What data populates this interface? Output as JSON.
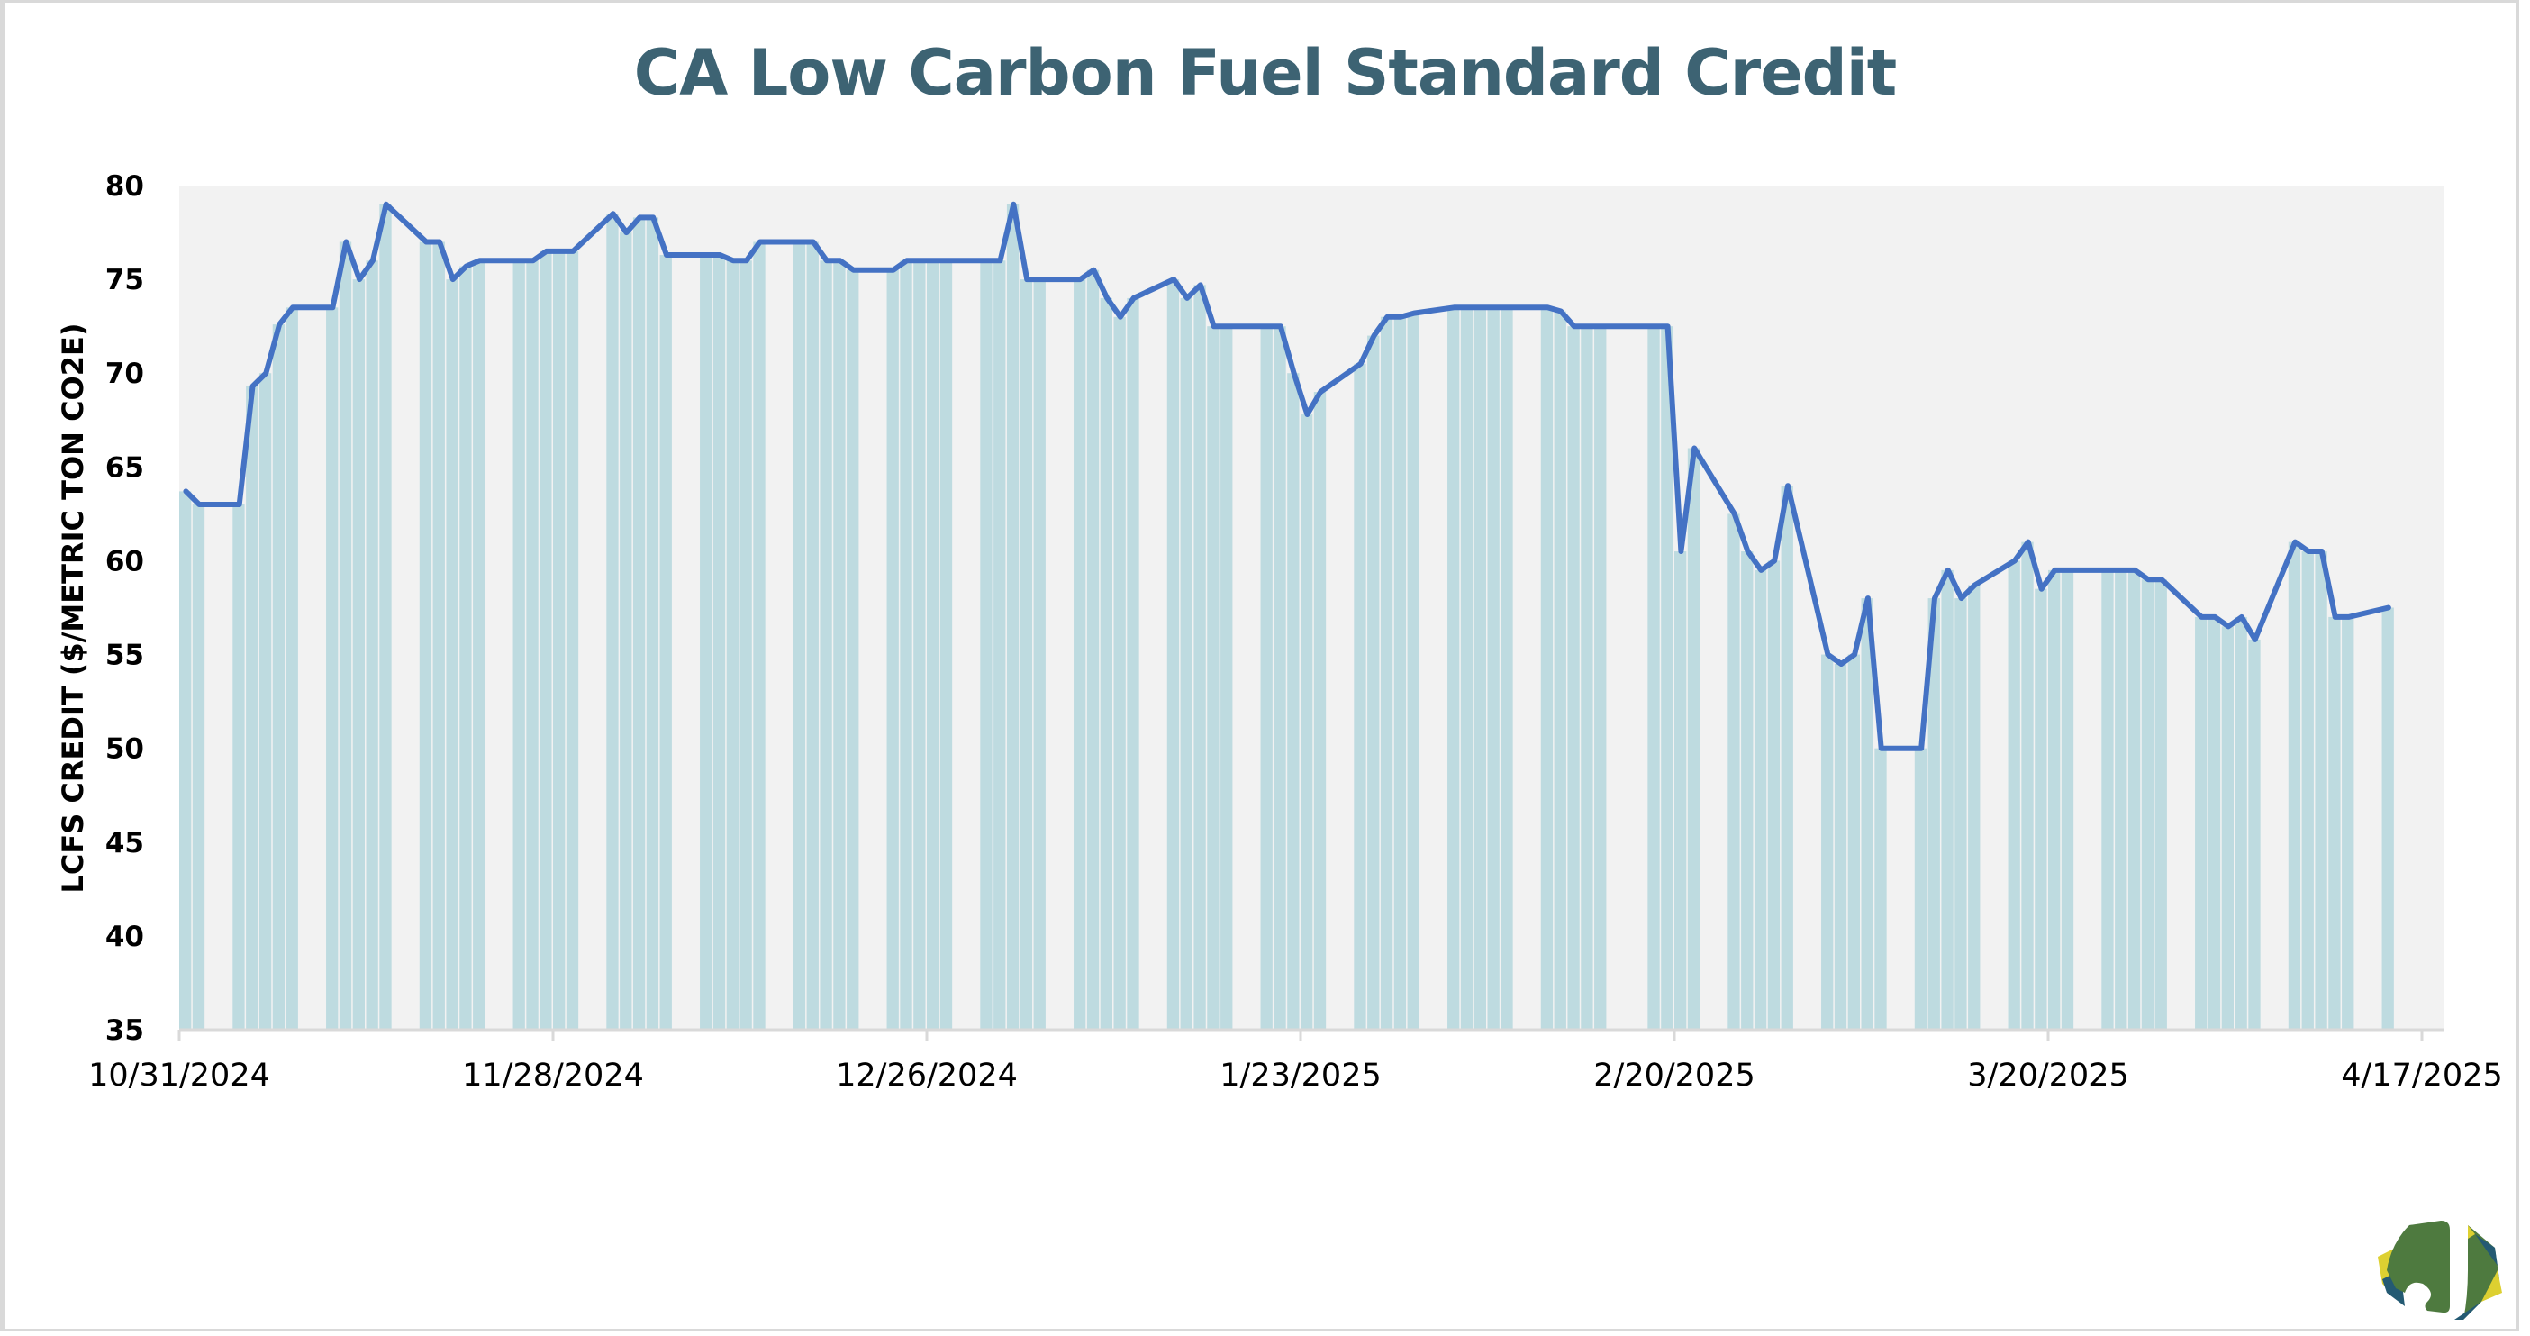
{
  "chart_data": {
    "type": "bar+line",
    "title": "CA Low Carbon Fuel Standard Credit",
    "xlabel": "",
    "ylabel": "LCFS CREDIT ($/METRIC TON CO2E)",
    "ylim": [
      35,
      80
    ],
    "yticks": [
      "35",
      "40",
      "45",
      "50",
      "55",
      "60",
      "65",
      "70",
      "75",
      "80"
    ],
    "xticks": [
      "10/31/2024",
      "11/28/2024",
      "12/26/2024",
      "1/23/2025",
      "2/20/2025",
      "3/20/2025",
      "4/17/2025"
    ],
    "xrange": [
      "2024-10-31",
      "2025-04-17"
    ],
    "grid": false,
    "legend": "none",
    "colors": {
      "bar": "#bedbe0",
      "line": "#4472c4",
      "plot_bg": "#f2f2f2",
      "title": "#3d6373"
    },
    "series": [
      {
        "name": "LCFS Credit",
        "points": [
          [
            "2024-10-31",
            63.7
          ],
          [
            "2024-11-01",
            63.0
          ],
          [
            "2024-11-04",
            63.0
          ],
          [
            "2024-11-05",
            69.3
          ],
          [
            "2024-11-06",
            70.0
          ],
          [
            "2024-11-07",
            72.6
          ],
          [
            "2024-11-08",
            73.5
          ],
          [
            "2024-11-11",
            73.5
          ],
          [
            "2024-11-12",
            77.0
          ],
          [
            "2024-11-13",
            75.0
          ],
          [
            "2024-11-14",
            76.0
          ],
          [
            "2024-11-15",
            79.0
          ],
          [
            "2024-11-18",
            77.0
          ],
          [
            "2024-11-19",
            77.0
          ],
          [
            "2024-11-20",
            75.0
          ],
          [
            "2024-11-21",
            75.7
          ],
          [
            "2024-11-22",
            76.0
          ],
          [
            "2024-11-25",
            76.0
          ],
          [
            "2024-11-26",
            76.0
          ],
          [
            "2024-11-27",
            76.5
          ],
          [
            "2024-11-28",
            76.5
          ],
          [
            "2024-11-29",
            76.5
          ],
          [
            "2024-12-02",
            78.5
          ],
          [
            "2024-12-03",
            77.5
          ],
          [
            "2024-12-04",
            78.3
          ],
          [
            "2024-12-05",
            78.3
          ],
          [
            "2024-12-06",
            76.3
          ],
          [
            "2024-12-09",
            76.3
          ],
          [
            "2024-12-10",
            76.3
          ],
          [
            "2024-12-11",
            76.0
          ],
          [
            "2024-12-12",
            76.0
          ],
          [
            "2024-12-13",
            77.0
          ],
          [
            "2024-12-16",
            77.0
          ],
          [
            "2024-12-17",
            77.0
          ],
          [
            "2024-12-18",
            76.0
          ],
          [
            "2024-12-19",
            76.0
          ],
          [
            "2024-12-20",
            75.5
          ],
          [
            "2024-12-23",
            75.5
          ],
          [
            "2024-12-24",
            76.0
          ],
          [
            "2024-12-25",
            76.0
          ],
          [
            "2024-12-26",
            76.0
          ],
          [
            "2024-12-27",
            76.0
          ],
          [
            "2024-12-30",
            76.0
          ],
          [
            "2024-12-31",
            76.0
          ],
          [
            "2025-01-01",
            79.0
          ],
          [
            "2025-01-02",
            75.0
          ],
          [
            "2025-01-03",
            75.0
          ],
          [
            "2025-01-06",
            75.0
          ],
          [
            "2025-01-07",
            75.5
          ],
          [
            "2025-01-08",
            74.0
          ],
          [
            "2025-01-09",
            73.0
          ],
          [
            "2025-01-10",
            74.0
          ],
          [
            "2025-01-13",
            75.0
          ],
          [
            "2025-01-14",
            74.0
          ],
          [
            "2025-01-15",
            74.7
          ],
          [
            "2025-01-16",
            72.5
          ],
          [
            "2025-01-17",
            72.5
          ],
          [
            "2025-01-20",
            72.5
          ],
          [
            "2025-01-21",
            72.5
          ],
          [
            "2025-01-22",
            70.0
          ],
          [
            "2025-01-23",
            67.8
          ],
          [
            "2025-01-24",
            69.0
          ],
          [
            "2025-01-27",
            70.5
          ],
          [
            "2025-01-28",
            72.0
          ],
          [
            "2025-01-29",
            73.0
          ],
          [
            "2025-01-30",
            73.0
          ],
          [
            "2025-01-31",
            73.2
          ],
          [
            "2025-02-03",
            73.5
          ],
          [
            "2025-02-04",
            73.5
          ],
          [
            "2025-02-05",
            73.5
          ],
          [
            "2025-02-06",
            73.5
          ],
          [
            "2025-02-07",
            73.5
          ],
          [
            "2025-02-10",
            73.5
          ],
          [
            "2025-02-11",
            73.3
          ],
          [
            "2025-02-12",
            72.5
          ],
          [
            "2025-02-13",
            72.5
          ],
          [
            "2025-02-14",
            72.5
          ],
          [
            "2025-02-18",
            72.5
          ],
          [
            "2025-02-19",
            72.5
          ],
          [
            "2025-02-20",
            60.5
          ],
          [
            "2025-02-21",
            66.0
          ],
          [
            "2025-02-24",
            62.5
          ],
          [
            "2025-02-25",
            60.5
          ],
          [
            "2025-02-26",
            59.5
          ],
          [
            "2025-02-27",
            60.0
          ],
          [
            "2025-02-28",
            64.0
          ],
          [
            "2025-03-03",
            55.0
          ],
          [
            "2025-03-04",
            54.5
          ],
          [
            "2025-03-05",
            55.0
          ],
          [
            "2025-03-06",
            58.0
          ],
          [
            "2025-03-07",
            50.0
          ],
          [
            "2025-03-10",
            50.0
          ],
          [
            "2025-03-11",
            58.0
          ],
          [
            "2025-03-12",
            59.5
          ],
          [
            "2025-03-13",
            58.0
          ],
          [
            "2025-03-14",
            58.7
          ],
          [
            "2025-03-17",
            60.0
          ],
          [
            "2025-03-18",
            61.0
          ],
          [
            "2025-03-19",
            58.5
          ],
          [
            "2025-03-20",
            59.5
          ],
          [
            "2025-03-21",
            59.5
          ],
          [
            "2025-03-24",
            59.5
          ],
          [
            "2025-03-25",
            59.5
          ],
          [
            "2025-03-26",
            59.5
          ],
          [
            "2025-03-27",
            59.0
          ],
          [
            "2025-03-28",
            59.0
          ],
          [
            "2025-03-31",
            57.0
          ],
          [
            "2025-04-01",
            57.0
          ],
          [
            "2025-04-02",
            56.5
          ],
          [
            "2025-04-03",
            57.0
          ],
          [
            "2025-04-04",
            55.8
          ],
          [
            "2025-04-07",
            61.0
          ],
          [
            "2025-04-08",
            60.5
          ],
          [
            "2025-04-09",
            60.5
          ],
          [
            "2025-04-10",
            57.0
          ],
          [
            "2025-04-11",
            57.0
          ],
          [
            "2025-04-14",
            57.5
          ]
        ]
      }
    ]
  }
}
